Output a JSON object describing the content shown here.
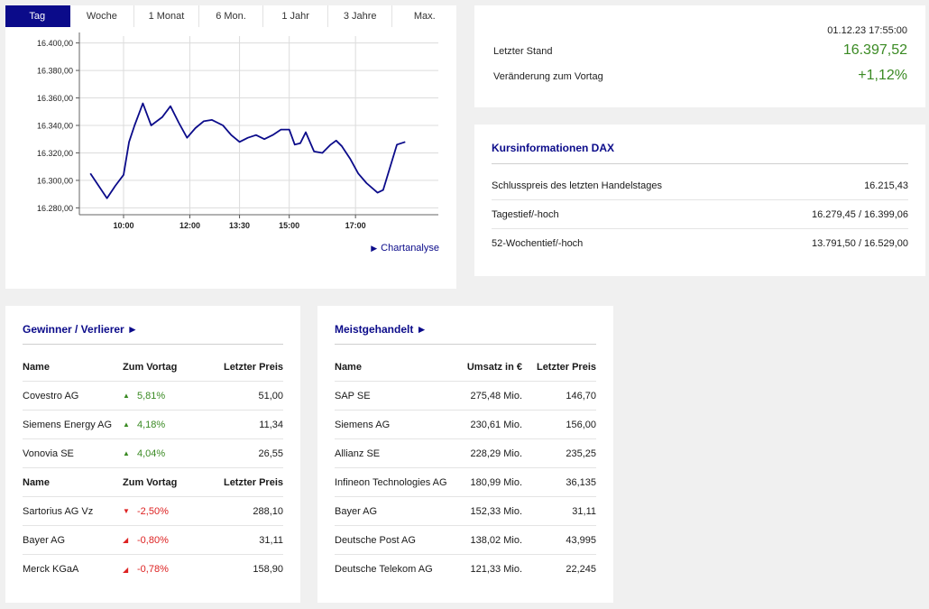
{
  "chart_panel": {
    "tabs": [
      {
        "label": "Tag",
        "active": true
      },
      {
        "label": "Woche",
        "active": false
      },
      {
        "label": "1 Monat",
        "active": false
      },
      {
        "label": "6 Mon.",
        "active": false
      },
      {
        "label": "1 Jahr",
        "active": false
      },
      {
        "label": "3 Jahre",
        "active": false
      },
      {
        "label": "Max.",
        "active": false
      }
    ],
    "link_label": "Chartanalyse",
    "line_color": "#0b0b8a"
  },
  "chart_data": {
    "type": "line",
    "title": "",
    "xlabel": "",
    "ylabel": "",
    "ylim": [
      16275,
      16405
    ],
    "x_ticks": [
      "10:00",
      "12:00",
      "13:30",
      "15:00",
      "17:00"
    ],
    "y_ticks": [
      "16.280,00",
      "16.300,00",
      "16.320,00",
      "16.340,00",
      "16.360,00",
      "16.380,00",
      "16.400,00"
    ],
    "y_tick_values": [
      16280,
      16300,
      16320,
      16340,
      16360,
      16380,
      16400
    ],
    "grid": true,
    "series": [
      {
        "x": [
          "09:00",
          "09:15",
          "09:30",
          "09:45",
          "10:00",
          "10:10",
          "10:20",
          "10:35",
          "10:50",
          "11:10",
          "11:25",
          "11:40",
          "11:55",
          "12:10",
          "12:25",
          "12:40",
          "13:00",
          "13:15",
          "13:30",
          "13:45",
          "14:00",
          "14:15",
          "14:30",
          "14:45",
          "15:00",
          "15:10",
          "15:20",
          "15:30",
          "15:45",
          "16:00",
          "16:15",
          "16:25",
          "16:35",
          "16:50",
          "17:05",
          "17:20",
          "17:40",
          "17:50",
          "18:15",
          "18:30"
        ],
        "values": [
          16305,
          16296,
          16287,
          16296,
          16304,
          16328,
          16340,
          16356,
          16340,
          16346,
          16354,
          16342,
          16331,
          16338,
          16343,
          16344,
          16340,
          16333,
          16328,
          16331,
          16333,
          16330,
          16333,
          16337,
          16337,
          16326,
          16327,
          16335,
          16321,
          16320,
          16326,
          16329,
          16325,
          16316,
          16305,
          16298,
          16291,
          16293,
          16326,
          16328
        ]
      }
    ]
  },
  "quote": {
    "timestamp": "01.12.23 17:55:00",
    "last_label": "Letzter Stand",
    "last_value": "16.397,52",
    "change_label": "Veränderung zum Vortag",
    "change_value": "+1,12%",
    "positive_color": "#3a8a23"
  },
  "info": {
    "title": "Kursinformationen DAX",
    "rows": [
      {
        "label": "Schlusspreis des letzten Handelstages",
        "value": "16.215,43"
      },
      {
        "label": "Tagestief/-hoch",
        "value": "16.279,45 / 16.399,06"
      },
      {
        "label": "52-Wochentief/-hoch",
        "value": "13.791,50 / 16.529,00"
      }
    ]
  },
  "gainers_losers": {
    "title": "Gewinner / Verlierer ►",
    "headers": {
      "name": "Name",
      "change": "Zum Vortag",
      "price": "Letzter Preis"
    },
    "gainers": [
      {
        "name": "Covestro AG",
        "change": "5,81%",
        "price": "51,00",
        "arrow": "▲"
      },
      {
        "name": "Siemens Energy AG",
        "change": "4,18%",
        "price": "11,34",
        "arrow": "▲"
      },
      {
        "name": "Vonovia SE",
        "change": "4,04%",
        "price": "26,55",
        "arrow": "▲"
      }
    ],
    "losers": [
      {
        "name": "Sartorius AG Vz",
        "change": "-2,50%",
        "price": "288,10",
        "arrow": "▼"
      },
      {
        "name": "Bayer AG",
        "change": "-0,80%",
        "price": "31,11",
        "arrow": "◢"
      },
      {
        "name": "Merck KGaA",
        "change": "-0,78%",
        "price": "158,90",
        "arrow": "◢"
      }
    ]
  },
  "most_traded": {
    "title": "Meistgehandelt ►",
    "headers": {
      "name": "Name",
      "volume": "Umsatz in €",
      "price": "Letzter Preis"
    },
    "rows": [
      {
        "name": "SAP SE",
        "volume": "275,48 Mio.",
        "price": "146,70"
      },
      {
        "name": "Siemens AG",
        "volume": "230,61 Mio.",
        "price": "156,00"
      },
      {
        "name": "Allianz SE",
        "volume": "228,29 Mio.",
        "price": "235,25"
      },
      {
        "name": "Infineon Technologies AG",
        "volume": "180,99 Mio.",
        "price": "36,135"
      },
      {
        "name": "Bayer AG",
        "volume": "152,33 Mio.",
        "price": "31,11"
      },
      {
        "name": "Deutsche Post AG",
        "volume": "138,02 Mio.",
        "price": "43,995"
      },
      {
        "name": "Deutsche Telekom AG",
        "volume": "121,33 Mio.",
        "price": "22,245"
      }
    ]
  }
}
